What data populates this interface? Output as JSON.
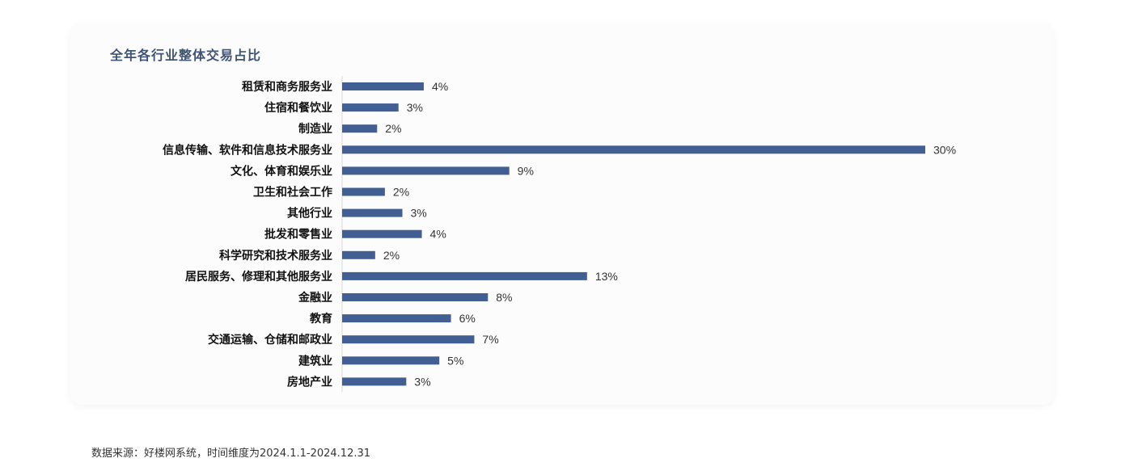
{
  "card": {
    "title": "全年各行业整体交易占比"
  },
  "footnote": "数据来源：好楼网系统，时间维度为2024.1.1-2024.12.31",
  "colors": {
    "bar": "#415f93",
    "axis": "#d8d8d8",
    "category_text": "#111111",
    "value_text": "#333333",
    "title": "#3f5473"
  },
  "chart_data": {
    "type": "bar",
    "orientation": "horizontal",
    "title": "全年各行业整体交易占比",
    "value_suffix": "%",
    "xlim": [
      0,
      30
    ],
    "grid": false,
    "legend": "none",
    "categories": [
      "租赁和商务服务业",
      "住宿和餐饮业",
      "制造业",
      "信息传输、软件和信息技术服务业",
      "文化、体育和娱乐业",
      "卫生和社会工作",
      "其他行业",
      "批发和零售业",
      "科学研究和技术服务业",
      "居民服务、修理和其他服务业",
      "金融业",
      "教育",
      "交通运输、仓储和邮政业",
      "建筑业",
      "房地产业"
    ],
    "values": [
      4.2,
      2.9,
      1.8,
      30,
      8.6,
      2.2,
      3.1,
      4.1,
      1.7,
      12.6,
      7.5,
      5.6,
      6.8,
      5.0,
      3.3
    ],
    "labels": [
      "4%",
      "3%",
      "2%",
      "30%",
      "9%",
      "2%",
      "3%",
      "4%",
      "2%",
      "13%",
      "8%",
      "6%",
      "7%",
      "5%",
      "3%"
    ]
  }
}
